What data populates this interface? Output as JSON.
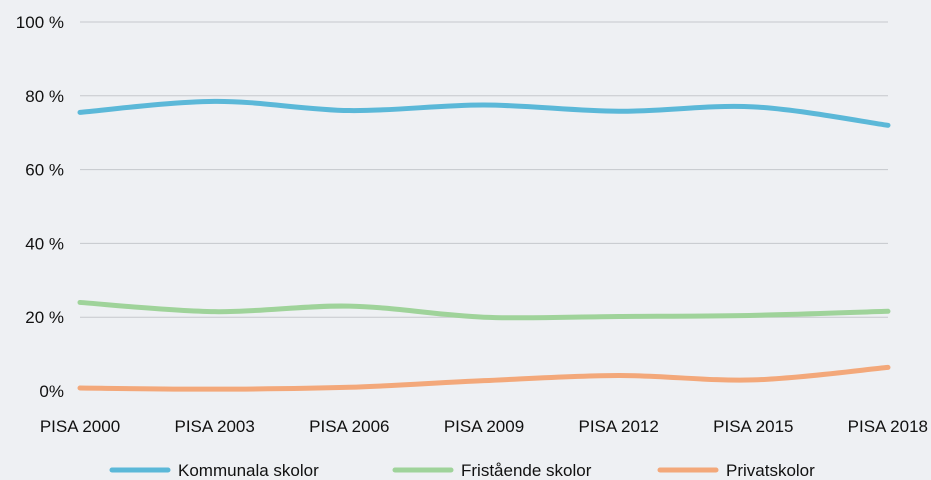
{
  "chart_data": {
    "type": "line",
    "categories": [
      "PISA 2000",
      "PISA 2003",
      "PISA 2006",
      "PISA 2009",
      "PISA 2012",
      "PISA 2015",
      "PISA 2018"
    ],
    "yticks": [
      "0%",
      "20 %",
      "40 %",
      "60 %",
      "80 %",
      "100 %"
    ],
    "ylim": [
      0,
      100
    ],
    "grid": true,
    "legend_position": "bottom",
    "series": [
      {
        "name": "Kommunala skolor",
        "color": "#5bb8d8",
        "values": [
          75.5,
          78.5,
          76,
          77.5,
          75.8,
          77,
          72
        ]
      },
      {
        "name": "Fristående skolor",
        "color": "#9fd39a",
        "values": [
          24,
          21.5,
          23,
          20,
          20.2,
          20.5,
          21.6
        ]
      },
      {
        "name": "Privatskolor",
        "color": "#f3a87a",
        "values": [
          0.8,
          0.5,
          1.0,
          2.8,
          4.2,
          3.0,
          6.4
        ]
      }
    ]
  }
}
